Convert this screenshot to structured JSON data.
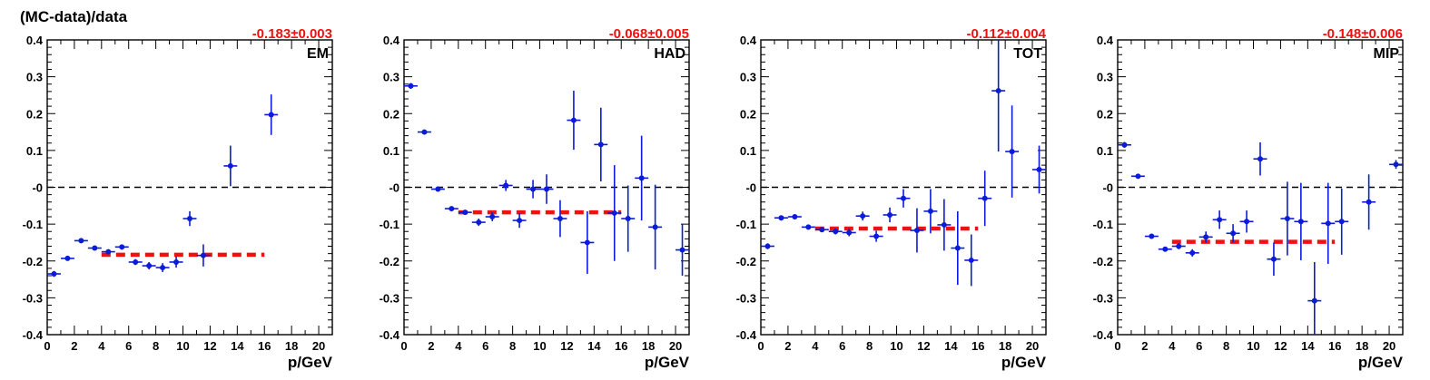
{
  "figure": {
    "ylabel": "(MC-data)/data",
    "xlabel": "p/GeV"
  },
  "colors": {
    "points": "#0b1bd8",
    "fit": "#ee1111",
    "zero": "#000000"
  },
  "chart_data": [
    {
      "type": "scatter",
      "label": "EM",
      "fit_text": "-0.183±0.003",
      "fit": {
        "value": -0.183,
        "x_range": [
          4,
          16
        ]
      },
      "xlim": [
        0,
        21
      ],
      "ylim": [
        -0.4,
        0.4
      ],
      "x_ticks": [
        0,
        2,
        4,
        6,
        8,
        10,
        12,
        14,
        16,
        18,
        20
      ],
      "y_ticks": [
        "-0.4",
        "-0.3",
        "-0.2",
        "-0.1",
        "-0",
        "0.1",
        "0.2",
        "0.3",
        "0.4"
      ],
      "points": [
        {
          "x": 0.5,
          "y": -0.235,
          "err": 0.008
        },
        {
          "x": 1.5,
          "y": -0.193,
          "err": 0.005
        },
        {
          "x": 2.5,
          "y": -0.145,
          "err": 0.005
        },
        {
          "x": 3.5,
          "y": -0.165,
          "err": 0.005
        },
        {
          "x": 4.5,
          "y": -0.175,
          "err": 0.006
        },
        {
          "x": 5.5,
          "y": -0.162,
          "err": 0.007
        },
        {
          "x": 6.5,
          "y": -0.203,
          "err": 0.008
        },
        {
          "x": 7.5,
          "y": -0.213,
          "err": 0.01
        },
        {
          "x": 8.5,
          "y": -0.218,
          "err": 0.012
        },
        {
          "x": 9.5,
          "y": -0.203,
          "err": 0.015
        },
        {
          "x": 10.5,
          "y": -0.085,
          "err": 0.02
        },
        {
          "x": 11.5,
          "y": -0.185,
          "err": 0.03
        },
        {
          "x": 13.5,
          "y": 0.058,
          "err": 0.055
        },
        {
          "x": 16.5,
          "y": 0.197,
          "err": 0.055
        }
      ]
    },
    {
      "type": "scatter",
      "label": "HAD",
      "fit_text": "-0.068±0.005",
      "fit": {
        "value": -0.068,
        "x_range": [
          4,
          16
        ]
      },
      "xlim": [
        0,
        21
      ],
      "ylim": [
        -0.4,
        0.4
      ],
      "x_ticks": [
        0,
        2,
        4,
        6,
        8,
        10,
        12,
        14,
        16,
        18,
        20
      ],
      "y_ticks": [
        "-0.4",
        "-0.3",
        "-0.2",
        "-0.1",
        "-0",
        "0.1",
        "0.2",
        "0.3",
        "0.4"
      ],
      "points": [
        {
          "x": 0.5,
          "y": 0.275,
          "err": 0.008
        },
        {
          "x": 1.5,
          "y": 0.15,
          "err": 0.006
        },
        {
          "x": 2.5,
          "y": -0.005,
          "err": 0.005
        },
        {
          "x": 3.5,
          "y": -0.058,
          "err": 0.005
        },
        {
          "x": 4.5,
          "y": -0.068,
          "err": 0.006
        },
        {
          "x": 5.5,
          "y": -0.095,
          "err": 0.01
        },
        {
          "x": 6.5,
          "y": -0.08,
          "err": 0.012
        },
        {
          "x": 7.5,
          "y": 0.005,
          "err": 0.015
        },
        {
          "x": 8.5,
          "y": -0.09,
          "err": 0.02
        },
        {
          "x": 9.5,
          "y": -0.005,
          "err": 0.025
        },
        {
          "x": 10.5,
          "y": -0.005,
          "err": 0.04
        },
        {
          "x": 11.5,
          "y": -0.085,
          "err": 0.05
        },
        {
          "x": 12.5,
          "y": 0.182,
          "err": 0.08
        },
        {
          "x": 13.5,
          "y": -0.15,
          "err": 0.085
        },
        {
          "x": 14.5,
          "y": 0.116,
          "err": 0.1
        },
        {
          "x": 15.5,
          "y": -0.07,
          "err": 0.13
        },
        {
          "x": 16.5,
          "y": -0.085,
          "err": 0.09
        },
        {
          "x": 17.5,
          "y": 0.025,
          "err": 0.115
        },
        {
          "x": 18.5,
          "y": -0.108,
          "err": 0.115
        },
        {
          "x": 20.5,
          "y": -0.17,
          "err": 0.07
        }
      ]
    },
    {
      "type": "scatter",
      "label": "TOT",
      "fit_text": "-0.112±0.004",
      "fit": {
        "value": -0.112,
        "x_range": [
          4,
          16
        ]
      },
      "xlim": [
        0,
        21
      ],
      "ylim": [
        -0.4,
        0.4
      ],
      "x_ticks": [
        0,
        2,
        4,
        6,
        8,
        10,
        12,
        14,
        16,
        18,
        20
      ],
      "y_ticks": [
        "-0.4",
        "-0.3",
        "-0.2",
        "-0.1",
        "-0",
        "0.1",
        "0.2",
        "0.3",
        "0.4"
      ],
      "points": [
        {
          "x": 0.5,
          "y": -0.16,
          "err": 0.008
        },
        {
          "x": 1.5,
          "y": -0.083,
          "err": 0.005
        },
        {
          "x": 2.5,
          "y": -0.08,
          "err": 0.005
        },
        {
          "x": 3.5,
          "y": -0.108,
          "err": 0.004
        },
        {
          "x": 4.5,
          "y": -0.115,
          "err": 0.005
        },
        {
          "x": 5.5,
          "y": -0.12,
          "err": 0.008
        },
        {
          "x": 6.5,
          "y": -0.123,
          "err": 0.01
        },
        {
          "x": 7.5,
          "y": -0.078,
          "err": 0.012
        },
        {
          "x": 8.5,
          "y": -0.133,
          "err": 0.015
        },
        {
          "x": 9.5,
          "y": -0.075,
          "err": 0.02
        },
        {
          "x": 10.5,
          "y": -0.03,
          "err": 0.025
        },
        {
          "x": 11.5,
          "y": -0.117,
          "err": 0.06
        },
        {
          "x": 12.5,
          "y": -0.065,
          "err": 0.06
        },
        {
          "x": 13.5,
          "y": -0.102,
          "err": 0.07
        },
        {
          "x": 14.5,
          "y": -0.165,
          "err": 0.1
        },
        {
          "x": 15.5,
          "y": -0.198,
          "err": 0.07
        },
        {
          "x": 16.5,
          "y": -0.03,
          "err": 0.075
        },
        {
          "x": 17.5,
          "y": 0.262,
          "err": 0.165
        },
        {
          "x": 18.5,
          "y": 0.097,
          "err": 0.125
        },
        {
          "x": 20.5,
          "y": 0.048,
          "err": 0.065
        }
      ]
    },
    {
      "type": "scatter",
      "label": "MIP",
      "fit_text": "-0.148±0.006",
      "fit": {
        "value": -0.148,
        "x_range": [
          4,
          16
        ]
      },
      "xlim": [
        0,
        21
      ],
      "ylim": [
        -0.4,
        0.4
      ],
      "x_ticks": [
        0,
        2,
        4,
        6,
        8,
        10,
        12,
        14,
        16,
        18,
        20
      ],
      "y_ticks": [
        "-0.4",
        "-0.3",
        "-0.2",
        "-0.1",
        "-0",
        "0.1",
        "0.2",
        "0.3",
        "0.4"
      ],
      "points": [
        {
          "x": 0.5,
          "y": 0.115,
          "err": 0.008
        },
        {
          "x": 1.5,
          "y": 0.03,
          "err": 0.006
        },
        {
          "x": 2.5,
          "y": -0.133,
          "err": 0.005
        },
        {
          "x": 3.5,
          "y": -0.168,
          "err": 0.006
        },
        {
          "x": 4.5,
          "y": -0.16,
          "err": 0.008
        },
        {
          "x": 5.5,
          "y": -0.178,
          "err": 0.01
        },
        {
          "x": 6.5,
          "y": -0.135,
          "err": 0.015
        },
        {
          "x": 7.5,
          "y": -0.088,
          "err": 0.025
        },
        {
          "x": 8.5,
          "y": -0.125,
          "err": 0.025
        },
        {
          "x": 9.5,
          "y": -0.093,
          "err": 0.03
        },
        {
          "x": 10.5,
          "y": 0.077,
          "err": 0.045
        },
        {
          "x": 11.5,
          "y": -0.195,
          "err": 0.045
        },
        {
          "x": 12.5,
          "y": -0.085,
          "err": 0.1
        },
        {
          "x": 13.5,
          "y": -0.093,
          "err": 0.105
        },
        {
          "x": 14.5,
          "y": -0.308,
          "err": 0.105
        },
        {
          "x": 15.5,
          "y": -0.098,
          "err": 0.11
        },
        {
          "x": 16.5,
          "y": -0.093,
          "err": 0.09
        },
        {
          "x": 18.5,
          "y": -0.04,
          "err": 0.075
        },
        {
          "x": 20.5,
          "y": 0.062,
          "err": 0.012
        }
      ]
    }
  ]
}
